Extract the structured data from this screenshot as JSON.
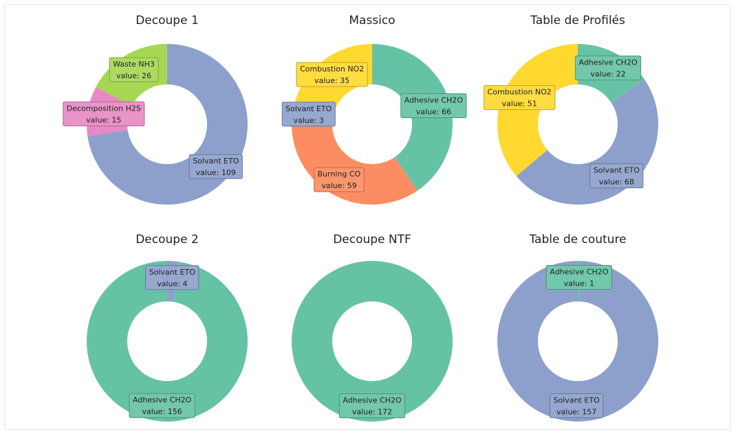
{
  "chart_data": [
    {
      "type": "pie",
      "title": "Decoupe 1",
      "slices": [
        {
          "label": "Solvant ETO",
          "value": 109,
          "color": "#8da0cb"
        },
        {
          "label": "Decomposition H2S",
          "value": 15,
          "color": "#e78ac3"
        },
        {
          "label": "Waste NH3",
          "value": 26,
          "color": "#a6d854"
        }
      ]
    },
    {
      "type": "pie",
      "title": "Massico",
      "slices": [
        {
          "label": "Adhesive CH2O",
          "value": 66,
          "color": "#66c2a5"
        },
        {
          "label": "Burning CO",
          "value": 59,
          "color": "#fc8d62"
        },
        {
          "label": "Solvant ETO",
          "value": 3,
          "color": "#8da0cb"
        },
        {
          "label": "Combustion NO2",
          "value": 35,
          "color": "#ffd92f"
        }
      ]
    },
    {
      "type": "pie",
      "title": "Table de Profilés",
      "slices": [
        {
          "label": "Adhesive CH2O",
          "value": 22,
          "color": "#66c2a5"
        },
        {
          "label": "Solvant ETO",
          "value": 68,
          "color": "#8da0cb"
        },
        {
          "label": "Combustion NO2",
          "value": 51,
          "color": "#ffd92f"
        }
      ]
    },
    {
      "type": "pie",
      "title": "Decoupe 2",
      "slices": [
        {
          "label": "Solvant ETO",
          "value": 4,
          "color": "#8da0cb"
        },
        {
          "label": "Adhesive CH2O",
          "value": 156,
          "color": "#66c2a5"
        }
      ]
    },
    {
      "type": "pie",
      "title": "Decoupe NTF",
      "slices": [
        {
          "label": "Adhesive CH2O",
          "value": 172,
          "color": "#66c2a5"
        }
      ]
    },
    {
      "type": "pie",
      "title": "Table de couture",
      "slices": [
        {
          "label": "Adhesive CH2O",
          "value": 1,
          "color": "#66c2a5"
        },
        {
          "label": "Solvant ETO",
          "value": 157,
          "color": "#8da0cb"
        }
      ]
    }
  ],
  "value_prefix": "value: "
}
